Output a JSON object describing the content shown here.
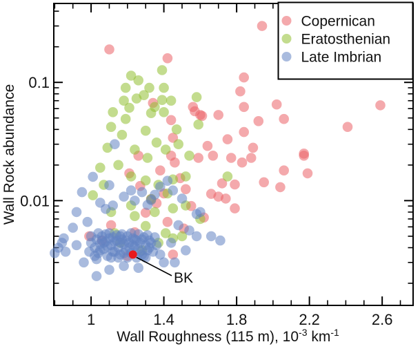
{
  "figure": {
    "type_note": "log-linear scatter plot of crater wall properties"
  },
  "chart_data": {
    "type": "scatter",
    "title": "",
    "xlabel": "Wall Roughness (115 m), 10⁻³ km⁻¹",
    "xlabel_parts": {
      "base1": "Wall Roughness (115 m), 10",
      "sup1": "-3",
      "base2": " km",
      "sup2": "-1"
    },
    "ylabel": "Wall Rock abundance",
    "x_axis": {
      "scale": "linear",
      "range": [
        0.795,
        2.77
      ],
      "major_ticks": [
        1,
        1.4,
        1.8,
        2.2,
        2.6
      ],
      "tick_labels": [
        "1",
        "1.4",
        "1.8",
        "2.2",
        "2.6"
      ],
      "minor_ticks": [
        0.8,
        0.9,
        1.1,
        1.2,
        1.3,
        1.5,
        1.6,
        1.7,
        1.9,
        2.0,
        2.1,
        2.3,
        2.4,
        2.5,
        2.7
      ]
    },
    "y_axis": {
      "scale": "log",
      "range": [
        0.0013,
        0.465
      ],
      "major_ticks": [
        0.01,
        0.1
      ],
      "tick_labels": [
        "0.01",
        "0.1"
      ],
      "minor_ticks": [
        0.002,
        0.003,
        0.004,
        0.005,
        0.006,
        0.007,
        0.008,
        0.009,
        0.02,
        0.03,
        0.04,
        0.05,
        0.06,
        0.07,
        0.08,
        0.09,
        0.2,
        0.3,
        0.4
      ]
    },
    "legend": {
      "position": "top-right",
      "items": [
        {
          "label": "Copernican",
          "color": "#eb6368"
        },
        {
          "label": "Eratosthenian",
          "color": "#92bf32"
        },
        {
          "label": "Late Imbrian",
          "color": "#6383c3"
        }
      ]
    },
    "marker": {
      "radius": 7.3,
      "opacity": 0.55
    },
    "series": [
      {
        "name": "Copernican",
        "color": "#eb6368",
        "points": [
          [
            1.1,
            0.19
          ],
          [
            1.42,
            0.16
          ],
          [
            1.94,
            0.3
          ],
          [
            1.84,
            0.11
          ],
          [
            1.82,
            0.084
          ],
          [
            1.84,
            0.062
          ],
          [
            1.6,
            0.053
          ],
          [
            1.7,
            0.053
          ],
          [
            1.56,
            0.062
          ],
          [
            2.06,
            0.049
          ],
          [
            2.59,
            0.064
          ],
          [
            2.41,
            0.042
          ],
          [
            2.17,
            0.025
          ],
          [
            2.19,
            0.017
          ],
          [
            1.84,
            0.038
          ],
          [
            1.75,
            0.033
          ],
          [
            1.64,
            0.029
          ],
          [
            1.67,
            0.024
          ],
          [
            1.89,
            0.028
          ],
          [
            1.77,
            0.023
          ],
          [
            1.83,
            0.021
          ],
          [
            1.88,
            0.023
          ],
          [
            2.17,
            0.024
          ],
          [
            1.72,
            0.014
          ],
          [
            1.79,
            0.0137
          ],
          [
            2.06,
            0.018
          ],
          [
            1.95,
            0.0143
          ],
          [
            2.04,
            0.013
          ],
          [
            1.66,
            0.0114
          ],
          [
            1.7,
            0.0108
          ],
          [
            1.74,
            0.0104
          ],
          [
            1.79,
            0.0086
          ],
          [
            1.34,
            0.067
          ],
          [
            1.57,
            0.057
          ],
          [
            1.61,
            0.052
          ],
          [
            1.44,
            0.048
          ],
          [
            1.45,
            0.034
          ],
          [
            1.44,
            0.024
          ],
          [
            1.38,
            0.018
          ],
          [
            1.27,
            0.0133
          ],
          [
            1.33,
            0.0103
          ],
          [
            1.46,
            0.021
          ],
          [
            1.59,
            0.023
          ],
          [
            0.99,
            0.005
          ],
          [
            1.06,
            0.0046
          ],
          [
            1.45,
            0.0035
          ],
          [
            1.11,
            0.0062
          ],
          [
            1.52,
            0.0125
          ],
          [
            1.55,
            0.009
          ],
          [
            1.62,
            0.0072
          ],
          [
            1.49,
            0.0155
          ],
          [
            1.4,
            0.0115
          ],
          [
            1.36,
            0.0095
          ],
          [
            1.3,
            0.0079
          ],
          [
            1.26,
            0.024
          ],
          [
            1.21,
            0.017
          ],
          [
            1.51,
            0.0058
          ],
          [
            1.42,
            0.0066
          ],
          [
            1.24,
            0.0054
          ],
          [
            2.02,
            0.065
          ],
          [
            1.92,
            0.047
          ],
          [
            1.2,
            0.0034
          ]
        ]
      },
      {
        "name": "Eratosthenian",
        "color": "#92bf32",
        "points": [
          [
            1.22,
            0.114
          ],
          [
            1.39,
            0.127
          ],
          [
            1.19,
            0.09
          ],
          [
            1.32,
            0.09
          ],
          [
            1.4,
            0.09
          ],
          [
            1.18,
            0.07
          ],
          [
            1.25,
            0.073
          ],
          [
            1.39,
            0.071
          ],
          [
            1.44,
            0.07
          ],
          [
            1.58,
            0.075
          ],
          [
            1.12,
            0.056
          ],
          [
            1.33,
            0.055
          ],
          [
            1.4,
            0.056
          ],
          [
            1.19,
            0.049
          ],
          [
            1.59,
            0.044
          ],
          [
            1.75,
            0.016
          ],
          [
            1.11,
            0.042
          ],
          [
            1.17,
            0.036
          ],
          [
            1.3,
            0.039
          ],
          [
            1.36,
            0.031
          ],
          [
            1.24,
            0.027
          ],
          [
            1.31,
            0.023
          ],
          [
            1.41,
            0.027
          ],
          [
            1.48,
            0.03
          ],
          [
            1.15,
            0.02
          ],
          [
            1.22,
            0.016
          ],
          [
            1.3,
            0.0148
          ],
          [
            1.37,
            0.0136
          ],
          [
            1.45,
            0.0151
          ],
          [
            1.52,
            0.016
          ],
          [
            1.07,
            0.0136
          ],
          [
            1.01,
            0.0111
          ],
          [
            1.22,
            0.0091
          ],
          [
            1.35,
            0.008
          ],
          [
            1.45,
            0.0086
          ],
          [
            1.52,
            0.0091
          ],
          [
            1.6,
            0.007
          ],
          [
            1.11,
            0.008
          ],
          [
            1.3,
            0.0061
          ],
          [
            1.41,
            0.0053
          ],
          [
            1.5,
            0.005
          ],
          [
            1.24,
            0.0074
          ],
          [
            1.16,
            0.0044
          ],
          [
            1.28,
            0.0038
          ],
          [
            1.37,
            0.0044
          ],
          [
            1.45,
            0.0048
          ],
          [
            1.13,
            0.0053
          ],
          [
            1.26,
            0.104
          ],
          [
            1.29,
            0.078
          ],
          [
            1.35,
            0.062
          ],
          [
            1.21,
            0.061
          ],
          [
            1.47,
            0.04
          ],
          [
            1.54,
            0.024
          ],
          [
            1.09,
            0.028
          ],
          [
            1.05,
            0.019
          ],
          [
            1.33,
            0.0103
          ],
          [
            1.42,
            0.0115
          ]
        ]
      },
      {
        "name": "Late Imbrian",
        "color": "#6383c3",
        "points": [
          [
            1.45,
            0.0122
          ],
          [
            1.58,
            0.005
          ],
          [
            1.35,
            0.0112
          ],
          [
            1.5,
            0.0104
          ],
          [
            1.6,
            0.008
          ],
          [
            1.66,
            0.005
          ],
          [
            1.71,
            0.0046
          ],
          [
            1.01,
            0.0159
          ],
          [
            0.95,
            0.0118
          ],
          [
            1.05,
            0.0096
          ],
          [
            0.92,
            0.008
          ],
          [
            1.12,
            0.0091
          ],
          [
            1.42,
            0.0147
          ],
          [
            1.38,
            0.0131
          ],
          [
            1.33,
            0.0101
          ],
          [
            1.58,
            0.0077
          ],
          [
            1.13,
            0.03
          ],
          [
            1.1,
            0.0135
          ],
          [
            1.22,
            0.0122
          ],
          [
            1.28,
            0.0118
          ],
          [
            1.18,
            0.0108
          ],
          [
            1.24,
            0.01
          ],
          [
            1.31,
            0.0092
          ],
          [
            1.08,
            0.0085
          ],
          [
            0.98,
            0.0066
          ],
          [
            0.9,
            0.0059
          ],
          [
            0.85,
            0.0048
          ],
          [
            0.82,
            0.004
          ],
          [
            0.86,
            0.0037
          ],
          [
            0.92,
            0.0042
          ],
          [
            1.48,
            0.0062
          ],
          [
            1.54,
            0.0056
          ],
          [
            1.44,
            0.0044
          ],
          [
            1.52,
            0.0038
          ],
          [
            1.38,
            0.0035
          ],
          [
            1.46,
            0.003
          ],
          [
            1.18,
            0.0028
          ],
          [
            1.26,
            0.0027
          ],
          [
            1.1,
            0.0026
          ],
          [
            1.03,
            0.0023
          ],
          [
            0.8,
            0.0036
          ],
          [
            0.84,
            0.0044
          ],
          [
            0.96,
            0.003
          ],
          [
            1.4,
            0.003
          ],
          [
            1.0,
            0.0044
          ],
          [
            1.02,
            0.004
          ],
          [
            1.03,
            0.0047
          ],
          [
            1.04,
            0.0036
          ],
          [
            1.05,
            0.0043
          ],
          [
            1.06,
            0.005
          ],
          [
            1.07,
            0.0039
          ],
          [
            1.08,
            0.0045
          ],
          [
            1.09,
            0.0034
          ],
          [
            1.1,
            0.0048
          ],
          [
            1.11,
            0.0042
          ],
          [
            1.12,
            0.0037
          ],
          [
            1.13,
            0.0045
          ],
          [
            1.14,
            0.0051
          ],
          [
            1.15,
            0.004
          ],
          [
            1.16,
            0.0035
          ],
          [
            1.17,
            0.0047
          ],
          [
            1.18,
            0.0043
          ],
          [
            1.19,
            0.0038
          ],
          [
            1.2,
            0.005
          ],
          [
            1.21,
            0.0044
          ],
          [
            1.22,
            0.0036
          ],
          [
            1.23,
            0.0048
          ],
          [
            1.24,
            0.0041
          ],
          [
            1.25,
            0.0046
          ],
          [
            1.26,
            0.0039
          ],
          [
            1.27,
            0.0044
          ],
          [
            1.28,
            0.0035
          ],
          [
            1.29,
            0.0049
          ],
          [
            1.3,
            0.0042
          ],
          [
            1.31,
            0.0038
          ],
          [
            1.32,
            0.0046
          ],
          [
            1.05,
            0.0038
          ],
          [
            1.08,
            0.0052
          ],
          [
            1.11,
            0.0033
          ],
          [
            1.14,
            0.0046
          ],
          [
            1.17,
            0.0052
          ],
          [
            1.2,
            0.0033
          ],
          [
            1.23,
            0.0042
          ],
          [
            1.26,
            0.0052
          ],
          [
            1.29,
            0.0034
          ],
          [
            1.32,
            0.004
          ],
          [
            1.02,
            0.0034
          ],
          [
            1.06,
            0.0046
          ],
          [
            1.1,
            0.0053
          ],
          [
            1.13,
            0.0037
          ],
          [
            1.16,
            0.0044
          ],
          [
            1.19,
            0.0046
          ],
          [
            1.22,
            0.0053
          ],
          [
            1.25,
            0.0033
          ],
          [
            1.28,
            0.0047
          ],
          [
            1.31,
            0.0051
          ],
          [
            0.99,
            0.0037
          ],
          [
            1.04,
            0.0053
          ],
          [
            1.09,
            0.0041
          ],
          [
            1.15,
            0.0033
          ],
          [
            1.21,
            0.004
          ],
          [
            1.27,
            0.0037
          ],
          [
            1.33,
            0.0044
          ],
          [
            1.35,
            0.0049
          ],
          [
            1.07,
            0.0044
          ],
          [
            1.12,
            0.0049
          ],
          [
            1.18,
            0.0036
          ],
          [
            1.24,
            0.0047
          ],
          [
            1.3,
            0.0033
          ],
          [
            1.34,
            0.0037
          ],
          [
            1.0,
            0.005
          ],
          [
            1.03,
            0.0032
          ],
          [
            1.36,
            0.0042
          ],
          [
            1.16,
            0.005
          ]
        ]
      }
    ],
    "annotation": {
      "label": "BK",
      "x": 1.23,
      "y": 0.0035,
      "color": "#e8191d",
      "marker_radius": 6
    },
    "frame_color": "#000000",
    "background": "#ffffff"
  }
}
